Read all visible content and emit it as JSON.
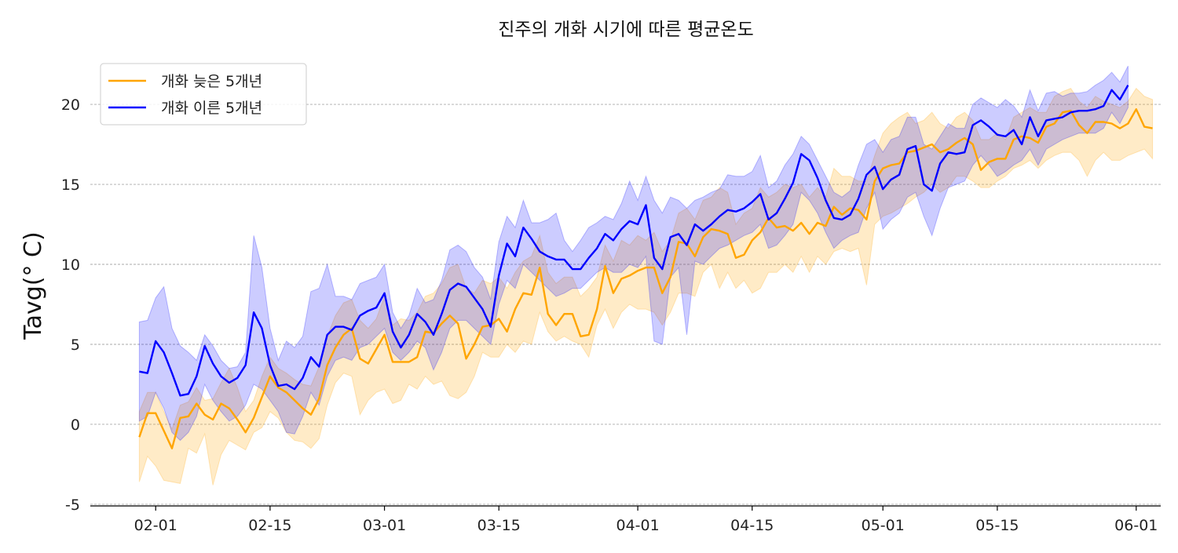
{
  "chart_data": {
    "type": "line",
    "title": "진주의 개화 시기에 따른 평균온도",
    "xlabel": "",
    "ylabel": "Tavg(°  C)",
    "x_start": "2025-01-30",
    "x_end": "2025-05-31",
    "xlim": [
      "2025-01-24",
      "2025-06-04"
    ],
    "ylim": [
      -5.1,
      22.6
    ],
    "x_ticks": [
      "02-01",
      "02-15",
      "03-01",
      "03-15",
      "04-01",
      "04-15",
      "05-01",
      "05-15",
      "06-01"
    ],
    "x_tick_dates": [
      "2025-02-01",
      "2025-02-15",
      "2025-03-01",
      "2025-03-15",
      "2025-04-01",
      "2025-04-15",
      "2025-05-01",
      "2025-05-15",
      "2025-06-01"
    ],
    "y_ticks": [
      -5,
      0,
      5,
      10,
      15,
      20
    ],
    "y_tick_labels": [
      "-5",
      "0",
      "5",
      "10",
      "15",
      "20"
    ],
    "grid": "y-dashed",
    "legend_position": "top-left",
    "series": [
      {
        "name": "개화 늦은 5개년",
        "color": "#ffa500",
        "values": [
          -0.8,
          0.7,
          0.7,
          -0.4,
          -1.5,
          0.4,
          0.5,
          1.3,
          0.6,
          0.3,
          1.3,
          1.0,
          0.3,
          -0.5,
          0.4,
          1.7,
          3.0,
          2.3,
          2.0,
          1.5,
          1.0,
          0.6,
          1.6,
          3.7,
          4.8,
          5.6,
          6.0,
          4.1,
          3.8,
          4.7,
          5.6,
          3.9,
          3.9,
          3.9,
          4.2,
          5.8,
          5.7,
          6.3,
          6.8,
          6.3,
          4.1,
          5.0,
          6.1,
          6.2,
          6.6,
          5.8,
          7.2,
          8.2,
          8.1,
          9.8,
          6.9,
          6.2,
          6.9,
          6.9,
          5.5,
          5.6,
          7.2,
          9.9,
          8.2,
          9.1,
          9.3,
          9.6,
          9.8,
          9.8,
          8.2,
          9.2,
          11.4,
          11.3,
          10.5,
          11.7,
          12.2,
          12.1,
          11.9,
          10.4,
          10.6,
          11.5,
          12.0,
          12.9,
          12.3,
          12.4,
          12.1,
          12.6,
          11.9,
          12.6,
          12.4,
          13.6,
          13.1,
          13.5,
          13.4,
          12.8,
          15.2,
          16.0,
          16.2,
          16.3,
          17.0,
          17.1,
          17.3,
          17.5,
          17.0,
          17.2,
          17.6,
          17.9,
          17.5,
          15.9,
          16.4,
          16.6,
          16.6,
          17.8,
          18.0,
          17.9,
          17.6,
          18.6,
          18.8,
          19.5,
          19.6,
          18.7,
          18.2,
          18.9,
          18.9,
          18.8,
          18.5,
          18.8,
          19.7,
          18.6,
          18.5
        ],
        "lower": [
          -3.6,
          -2.0,
          -2.6,
          -3.5,
          -3.6,
          -3.7,
          -1.5,
          -1.8,
          -0.6,
          -3.8,
          -1.9,
          -1.0,
          -1.3,
          -1.6,
          -0.5,
          -0.2,
          0.8,
          0.4,
          -0.5,
          -1.0,
          -1.1,
          -1.5,
          -0.9,
          1.2,
          2.6,
          3.2,
          3.0,
          0.6,
          1.5,
          2.0,
          2.2,
          1.3,
          1.5,
          2.5,
          2.2,
          3.0,
          2.5,
          2.7,
          1.8,
          1.6,
          2.0,
          3.0,
          4.5,
          4.2,
          4.2,
          5.0,
          4.5,
          5.2,
          5.0,
          7.0,
          5.8,
          5.2,
          5.5,
          5.2,
          5.0,
          4.2,
          6.2,
          7.2,
          6.0,
          7.0,
          7.5,
          7.2,
          7.2,
          7.0,
          6.2,
          7.0,
          8.2,
          8.2,
          8.0,
          9.5,
          10.0,
          8.5,
          9.5,
          8.5,
          9.0,
          8.2,
          8.5,
          9.5,
          9.5,
          10.0,
          9.5,
          10.5,
          9.5,
          10.5,
          10.0,
          10.8,
          11.0,
          10.8,
          11.0,
          8.7,
          12.5,
          13.0,
          13.2,
          13.5,
          13.8,
          14.2,
          14.5,
          15.0,
          14.5,
          14.8,
          15.5,
          15.5,
          15.2,
          14.8,
          14.8,
          15.2,
          15.5,
          16.0,
          16.2,
          16.5,
          16.0,
          16.5,
          16.8,
          17.0,
          17.0,
          16.5,
          15.5,
          16.5,
          17.0,
          16.5,
          16.5,
          16.8,
          17.0,
          17.2,
          16.6
        ],
        "upper": [
          0.8,
          2.0,
          2.0,
          0.8,
          -0.3,
          1.2,
          1.4,
          2.3,
          1.5,
          1.6,
          2.6,
          3.5,
          2.3,
          0.8,
          1.5,
          3.0,
          4.2,
          3.5,
          3.2,
          2.8,
          2.5,
          2.4,
          3.6,
          5.5,
          6.8,
          7.6,
          7.8,
          6.5,
          6.0,
          6.6,
          8.0,
          6.2,
          6.6,
          6.5,
          7.0,
          8.0,
          8.2,
          8.8,
          9.8,
          10.0,
          8.5,
          8.2,
          9.0,
          8.8,
          9.2,
          8.5,
          9.5,
          10.2,
          10.5,
          11.8,
          9.5,
          8.8,
          9.2,
          9.2,
          8.0,
          8.5,
          9.2,
          11.2,
          10.2,
          11.5,
          11.2,
          11.8,
          11.5,
          12.0,
          10.8,
          11.5,
          13.2,
          13.5,
          12.8,
          14.0,
          14.2,
          14.8,
          14.5,
          12.5,
          13.2,
          13.5,
          14.8,
          14.2,
          14.5,
          15.0,
          14.8,
          15.0,
          14.2,
          14.8,
          14.2,
          16.0,
          15.5,
          15.5,
          15.2,
          15.2,
          16.8,
          18.2,
          18.8,
          19.2,
          19.5,
          18.8,
          19.0,
          19.5,
          18.8,
          18.5,
          19.2,
          19.5,
          19.0,
          17.8,
          17.8,
          18.2,
          17.8,
          19.2,
          19.5,
          19.8,
          19.5,
          19.5,
          20.5,
          20.8,
          21.0,
          20.2,
          19.8,
          20.5,
          20.2,
          20.0,
          19.8,
          20.2,
          21.0,
          20.5,
          20.3
        ]
      },
      {
        "name": "개화 이른 5개년",
        "color": "#0000ff",
        "values": [
          3.3,
          3.2,
          5.2,
          4.5,
          3.2,
          1.8,
          1.9,
          3.0,
          4.9,
          3.8,
          3.0,
          2.6,
          2.9,
          3.7,
          7.0,
          6.0,
          3.7,
          2.4,
          2.5,
          2.2,
          2.9,
          4.2,
          3.6,
          5.6,
          6.1,
          6.1,
          5.9,
          6.8,
          7.1,
          7.3,
          8.2,
          5.8,
          4.8,
          5.6,
          6.9,
          6.4,
          5.6,
          6.9,
          8.4,
          8.8,
          8.6,
          7.9,
          7.2,
          6.1,
          9.3,
          11.3,
          10.5,
          12.3,
          11.6,
          10.8,
          10.5,
          10.3,
          10.3,
          9.7,
          9.7,
          10.4,
          11.0,
          11.9,
          11.5,
          12.2,
          12.7,
          12.5,
          13.7,
          10.4,
          9.7,
          11.7,
          11.9,
          11.2,
          12.5,
          12.1,
          12.5,
          13.0,
          13.4,
          13.3,
          13.5,
          13.9,
          14.4,
          12.8,
          13.2,
          14.1,
          15.1,
          16.9,
          16.5,
          15.4,
          14.0,
          12.9,
          12.8,
          13.1,
          14.1,
          15.6,
          16.1,
          14.7,
          15.3,
          15.6,
          17.2,
          17.4,
          15.0,
          14.6,
          16.3,
          17.0,
          16.9,
          17.0,
          18.7,
          19.0,
          18.6,
          18.1,
          18.0,
          18.4,
          17.5,
          19.2,
          18.0,
          19.0,
          19.1,
          19.2,
          19.5,
          19.6,
          19.6,
          19.7,
          19.9,
          20.9,
          20.3,
          21.2
        ],
        "lower": [
          0.2,
          0.5,
          2.0,
          1.0,
          -0.5,
          -1.0,
          -0.5,
          0.5,
          2.5,
          1.5,
          0.8,
          0.2,
          0.5,
          1.2,
          2.5,
          2.2,
          1.5,
          0.8,
          -0.5,
          -0.6,
          0.5,
          2.0,
          1.2,
          3.0,
          4.0,
          4.2,
          4.0,
          4.8,
          5.0,
          5.5,
          6.0,
          4.5,
          4.0,
          4.5,
          5.2,
          4.8,
          3.4,
          4.5,
          6.0,
          6.5,
          6.5,
          6.0,
          5.5,
          5.0,
          7.5,
          9.0,
          8.5,
          10.0,
          9.5,
          9.0,
          8.5,
          8.0,
          8.2,
          8.5,
          8.5,
          9.0,
          9.5,
          9.8,
          9.5,
          9.5,
          10.0,
          9.8,
          10.5,
          5.2,
          5.0,
          9.2,
          9.8,
          5.6,
          10.2,
          10.0,
          10.5,
          11.0,
          11.2,
          11.5,
          11.8,
          12.0,
          12.5,
          11.0,
          11.2,
          11.8,
          12.5,
          14.5,
          14.0,
          13.2,
          12.0,
          11.0,
          11.5,
          11.8,
          12.0,
          13.5,
          14.5,
          12.2,
          12.8,
          13.2,
          14.2,
          14.5,
          13.0,
          11.8,
          13.5,
          14.8,
          15.0,
          15.2,
          16.2,
          16.8,
          16.2,
          15.5,
          15.8,
          16.2,
          16.5,
          17.2,
          16.2,
          17.2,
          17.5,
          17.8,
          18.0,
          18.2,
          18.2,
          18.2,
          18.5,
          19.5,
          18.8,
          19.8
        ],
        "upper": [
          6.4,
          6.5,
          7.9,
          8.6,
          6.0,
          4.9,
          4.5,
          4.0,
          5.6,
          4.9,
          4.0,
          3.5,
          3.6,
          4.5,
          11.8,
          9.8,
          6.0,
          4.0,
          5.2,
          4.8,
          5.5,
          8.3,
          8.5,
          10.0,
          8.0,
          8.0,
          7.8,
          8.8,
          9.0,
          9.2,
          10.0,
          7.0,
          6.0,
          6.8,
          8.5,
          7.6,
          7.8,
          9.0,
          10.9,
          11.2,
          10.8,
          9.8,
          9.2,
          7.8,
          11.4,
          13.0,
          12.3,
          14.0,
          12.6,
          12.6,
          12.8,
          13.2,
          11.5,
          10.8,
          11.5,
          12.3,
          12.6,
          13.0,
          12.8,
          13.8,
          15.2,
          14.0,
          15.5,
          14.0,
          13.2,
          14.2,
          14.0,
          13.5,
          14.0,
          14.2,
          14.5,
          14.7,
          15.6,
          15.5,
          15.5,
          15.8,
          16.8,
          14.8,
          15.2,
          16.2,
          16.9,
          18.0,
          17.5,
          16.5,
          15.5,
          14.5,
          14.2,
          14.6,
          16.2,
          17.5,
          17.8,
          17.0,
          17.8,
          18.0,
          19.2,
          19.2,
          17.5,
          17.2,
          18.0,
          18.8,
          18.5,
          18.5,
          20.0,
          20.4,
          20.1,
          19.8,
          20.3,
          19.9,
          19.2,
          20.9,
          19.6,
          20.7,
          20.8,
          20.5,
          20.7,
          20.7,
          20.8,
          21.2,
          21.5,
          22.0,
          21.4,
          22.4
        ]
      }
    ]
  }
}
